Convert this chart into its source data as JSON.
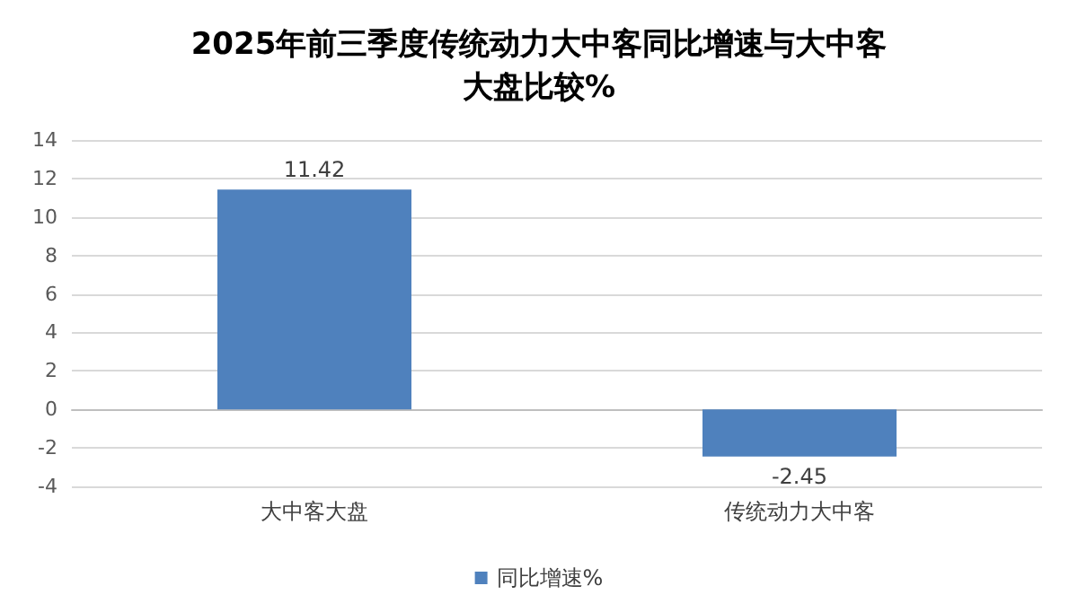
{
  "chart_data": {
    "type": "bar",
    "title": "2025年前三季度传统动力大中客同比增速与大中客大盘比较%",
    "categories": [
      "大中客大盘",
      "传统动力大中客"
    ],
    "series": [
      {
        "name": "同比增速%",
        "color": "#4f81bd",
        "values": [
          11.42,
          -2.45
        ]
      }
    ],
    "ylim": [
      -4,
      14
    ],
    "yticks": [
      -4,
      -2,
      0,
      2,
      4,
      6,
      8,
      10,
      12,
      14
    ],
    "grid": "y",
    "legend": "bottom",
    "data_labels": true
  }
}
